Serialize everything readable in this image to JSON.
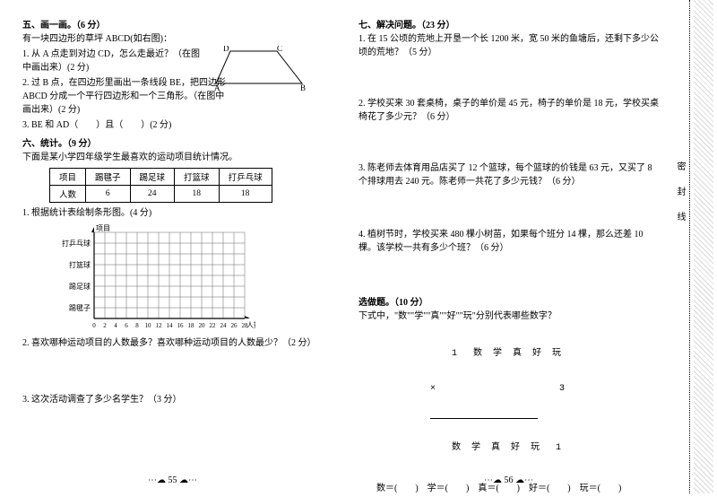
{
  "left": {
    "sec5_title": "五、画一画。（6 分）",
    "sec5_intro": "有一块四边形的草坪 ABCD(如右图)：",
    "sec5_q1": "1. 从 A 点走到对边 CD，怎么走最近？（在图中画出来）(2 分)",
    "sec5_q2": "2. 过 B 点，在四边形里画出一条线段 BE，把四边形 ABCD 分成一个平行四边形和一个三角形。（在图中画出来）(2 分)",
    "sec5_q3": "3. BE 和 AD（　　）且（　　）(2 分)",
    "trap_labels": {
      "A": "A",
      "B": "B",
      "C": "C",
      "D": "D"
    },
    "sec6_title": "六、统计。（9 分）",
    "sec6_intro": "下面是某小学四年级学生最喜欢的运动项目统计情况。",
    "table": {
      "headers": [
        "项目",
        "踢毽子",
        "踢足球",
        "打篮球",
        "打乒乓球"
      ],
      "row_label": "人数",
      "values": [
        "6",
        "24",
        "18",
        "18"
      ]
    },
    "sec6_q1": "1. 根据统计表绘制条形图。(4 分)",
    "chart": {
      "ytitle": "项目",
      "xtitle": "人数",
      "ylabels": [
        "打乒乓球",
        "打篮球",
        "踢足球",
        "踢毽子"
      ],
      "xticks": [
        "0",
        "2",
        "4",
        "6",
        "8",
        "10",
        "12",
        "14",
        "16",
        "18",
        "20",
        "22",
        "24",
        "26",
        "28"
      ],
      "cols": 14,
      "rows": 8,
      "cell": 12,
      "grid_color": "#666",
      "bg": "#ffffff"
    },
    "sec6_q2": "2. 喜欢哪种运动项目的人数最多？喜欢哪种运动项目的人数最少？（2 分）",
    "sec6_q3": "3. 这次活动调查了多少名学生？（3 分）",
    "page_no": "55"
  },
  "right": {
    "sec7_title": "七、解决问题。（23 分）",
    "q1": "1. 在 15 公顷的荒地上开垦一个长 1200 米，宽 50 米的鱼塘后，还剩下多少公顷的荒地？（5 分）",
    "q2": "2. 学校买来 30 套桌椅，桌子的单价是 45 元，椅子的单价是 18 元，学校买桌椅花了多少元？（6 分）",
    "q3": "3. 陈老师去体育用品店买了 12 个篮球，每个篮球的价钱是 63 元，又买了 8 个排球用去 240 元。陈老师一共花了多少元钱？（6 分）",
    "q4": "4. 植树节时，学校买来 480 棵小树苗，如果每个班分 14 棵，那么还差 10 棵。该学校一共有多少个班？（6 分）",
    "bonus_title": "选做题。（10 分）",
    "bonus_intro": "下式中，\"数\"\"学\"\"真\"\"好\"\"玩\"分别代表哪些数字？",
    "mult": {
      "top": "    1   数  学  真  好  玩",
      "times": "×                       3",
      "bottom": "    数  学  真  好  玩   1"
    },
    "bonus_ans": "数＝(　　)　学＝(　　)　真＝(　　)　好＝(　　)　玩＝(　　)",
    "page_no": "56",
    "seal": [
      "密",
      "封",
      "线"
    ]
  }
}
